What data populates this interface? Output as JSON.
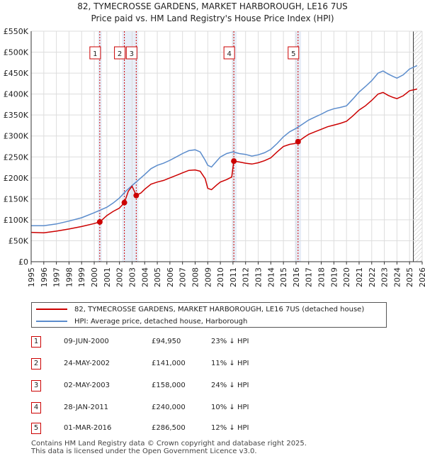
{
  "chart_data": {
    "type": "line",
    "title": "82, TYMECROSSE GARDENS, MARKET HARBOROUGH, LE16 7US",
    "subtitle": "Price paid vs. HM Land Registry's House Price Index (HPI)",
    "xlim": [
      1995,
      2026
    ],
    "ylim": [
      0,
      550000
    ],
    "x_ticks": [
      "1995",
      "1996",
      "1997",
      "1998",
      "1999",
      "2000",
      "2001",
      "2002",
      "2003",
      "2004",
      "2005",
      "2006",
      "2007",
      "2008",
      "2009",
      "2010",
      "2011",
      "2012",
      "2013",
      "2014",
      "2015",
      "2016",
      "2017",
      "2018",
      "2019",
      "2020",
      "2021",
      "2022",
      "2023",
      "2024",
      "2025",
      "2026"
    ],
    "y_ticks": [
      {
        "value": 0,
        "label": "£0"
      },
      {
        "value": 50000,
        "label": "£50K"
      },
      {
        "value": 100000,
        "label": "£100K"
      },
      {
        "value": 150000,
        "label": "£150K"
      },
      {
        "value": 200000,
        "label": "£200K"
      },
      {
        "value": 250000,
        "label": "£250K"
      },
      {
        "value": 300000,
        "label": "£300K"
      },
      {
        "value": 350000,
        "label": "£350K"
      },
      {
        "value": 400000,
        "label": "£400K"
      },
      {
        "value": 450000,
        "label": "£450K"
      },
      {
        "value": 500000,
        "label": "£500K"
      },
      {
        "value": 550000,
        "label": "£550K"
      }
    ],
    "grid": true,
    "shaded_bands": [
      [
        2000.3,
        2000.6
      ],
      [
        2002.2,
        2003.5
      ],
      [
        2010.9,
        2011.3
      ],
      [
        2015.9,
        2016.4
      ]
    ],
    "forecast_start": 2025.3,
    "series": [
      {
        "name": "82, TYMECROSSE GARDENS, MARKET HARBOROUGH, LE16 7US (detached house)",
        "color": "#cc0000",
        "points": [
          [
            1995.0,
            70000
          ],
          [
            1996.0,
            69000
          ],
          [
            1997.0,
            73000
          ],
          [
            1998.0,
            78000
          ],
          [
            1999.0,
            84000
          ],
          [
            2000.0,
            91000
          ],
          [
            2000.44,
            94950
          ],
          [
            2001.0,
            110000
          ],
          [
            2001.5,
            120000
          ],
          [
            2002.0,
            128000
          ],
          [
            2002.39,
            141000
          ],
          [
            2002.7,
            168000
          ],
          [
            2003.0,
            180000
          ],
          [
            2003.33,
            158000
          ],
          [
            2003.7,
            164000
          ],
          [
            2004.0,
            173000
          ],
          [
            2004.5,
            185000
          ],
          [
            2005.0,
            190000
          ],
          [
            2005.5,
            194000
          ],
          [
            2006.0,
            200000
          ],
          [
            2006.5,
            206000
          ],
          [
            2007.0,
            212000
          ],
          [
            2007.5,
            218000
          ],
          [
            2008.0,
            219000
          ],
          [
            2008.4,
            216000
          ],
          [
            2008.8,
            198000
          ],
          [
            2009.0,
            175000
          ],
          [
            2009.3,
            172000
          ],
          [
            2009.7,
            183000
          ],
          [
            2010.0,
            190000
          ],
          [
            2010.5,
            196000
          ],
          [
            2010.9,
            202000
          ],
          [
            2011.07,
            240000
          ],
          [
            2011.5,
            238000
          ],
          [
            2012.0,
            235000
          ],
          [
            2012.5,
            233000
          ],
          [
            2013.0,
            236000
          ],
          [
            2013.5,
            241000
          ],
          [
            2014.0,
            248000
          ],
          [
            2014.5,
            262000
          ],
          [
            2015.0,
            275000
          ],
          [
            2015.5,
            280000
          ],
          [
            2015.9,
            282000
          ],
          [
            2016.16,
            286500
          ],
          [
            2016.6,
            296000
          ],
          [
            2017.0,
            304000
          ],
          [
            2017.5,
            310000
          ],
          [
            2018.0,
            316000
          ],
          [
            2018.5,
            322000
          ],
          [
            2019.0,
            326000
          ],
          [
            2019.5,
            330000
          ],
          [
            2020.0,
            335000
          ],
          [
            2020.5,
            348000
          ],
          [
            2021.0,
            362000
          ],
          [
            2021.5,
            372000
          ],
          [
            2022.0,
            385000
          ],
          [
            2022.5,
            400000
          ],
          [
            2022.9,
            404000
          ],
          [
            2023.3,
            397000
          ],
          [
            2023.7,
            392000
          ],
          [
            2024.0,
            389000
          ],
          [
            2024.5,
            396000
          ],
          [
            2025.0,
            408000
          ],
          [
            2025.6,
            412000
          ]
        ]
      },
      {
        "name": "HPI: Average price, detached house, Harborough",
        "color": "#5b8ccc",
        "points": [
          [
            1995.0,
            86000
          ],
          [
            1996.0,
            86000
          ],
          [
            1997.0,
            90000
          ],
          [
            1998.0,
            97000
          ],
          [
            1999.0,
            105000
          ],
          [
            2000.0,
            117000
          ],
          [
            2001.0,
            130000
          ],
          [
            2001.5,
            140000
          ],
          [
            2002.0,
            152000
          ],
          [
            2002.5,
            168000
          ],
          [
            2003.0,
            182000
          ],
          [
            2003.5,
            195000
          ],
          [
            2004.0,
            208000
          ],
          [
            2004.5,
            222000
          ],
          [
            2005.0,
            230000
          ],
          [
            2005.5,
            235000
          ],
          [
            2006.0,
            242000
          ],
          [
            2006.5,
            250000
          ],
          [
            2007.0,
            258000
          ],
          [
            2007.5,
            265000
          ],
          [
            2008.0,
            267000
          ],
          [
            2008.4,
            262000
          ],
          [
            2008.8,
            242000
          ],
          [
            2009.0,
            230000
          ],
          [
            2009.3,
            226000
          ],
          [
            2009.7,
            240000
          ],
          [
            2010.0,
            250000
          ],
          [
            2010.5,
            258000
          ],
          [
            2011.0,
            262000
          ],
          [
            2011.5,
            258000
          ],
          [
            2012.0,
            256000
          ],
          [
            2012.5,
            252000
          ],
          [
            2013.0,
            255000
          ],
          [
            2013.5,
            260000
          ],
          [
            2014.0,
            268000
          ],
          [
            2014.5,
            282000
          ],
          [
            2015.0,
            298000
          ],
          [
            2015.5,
            310000
          ],
          [
            2016.0,
            318000
          ],
          [
            2016.5,
            328000
          ],
          [
            2017.0,
            338000
          ],
          [
            2017.5,
            345000
          ],
          [
            2018.0,
            352000
          ],
          [
            2018.5,
            360000
          ],
          [
            2019.0,
            365000
          ],
          [
            2019.5,
            368000
          ],
          [
            2020.0,
            372000
          ],
          [
            2020.5,
            388000
          ],
          [
            2021.0,
            405000
          ],
          [
            2021.5,
            418000
          ],
          [
            2022.0,
            432000
          ],
          [
            2022.5,
            450000
          ],
          [
            2022.9,
            455000
          ],
          [
            2023.3,
            448000
          ],
          [
            2023.7,
            442000
          ],
          [
            2024.0,
            438000
          ],
          [
            2024.5,
            446000
          ],
          [
            2025.0,
            460000
          ],
          [
            2025.6,
            468000
          ]
        ]
      }
    ],
    "transactions": [
      {
        "label": "1",
        "x": 2000.44,
        "y": 94950,
        "date": "09-JUN-2000",
        "price": "£94,950",
        "hpi": "23% ↓ HPI"
      },
      {
        "label": "2",
        "x": 2002.39,
        "y": 141000,
        "date": "24-MAY-2002",
        "price": "£141,000",
        "hpi": "11% ↓ HPI"
      },
      {
        "label": "3",
        "x": 2003.33,
        "y": 158000,
        "date": "02-MAY-2003",
        "price": "£158,000",
        "hpi": "24% ↓ HPI"
      },
      {
        "label": "4",
        "x": 2011.07,
        "y": 240000,
        "date": "28-JAN-2011",
        "price": "£240,000",
        "hpi": "10% ↓ HPI"
      },
      {
        "label": "5",
        "x": 2016.16,
        "y": 286500,
        "date": "01-MAR-2016",
        "price": "£286,500",
        "hpi": "12% ↓ HPI"
      }
    ]
  },
  "legend": {
    "property": "82, TYMECROSSE GARDENS, MARKET HARBOROUGH, LE16 7US (detached house)",
    "hpi": "HPI: Average price, detached house, Harborough"
  },
  "footer": {
    "line1": "Contains HM Land Registry data © Crown copyright and database right 2025.",
    "line2": "This data is licensed under the Open Government Licence v3.0."
  },
  "colors": {
    "property": "#cc0000",
    "hpi": "#5b8ccc",
    "band": "#e8eef8",
    "grid": "#dddddd"
  }
}
